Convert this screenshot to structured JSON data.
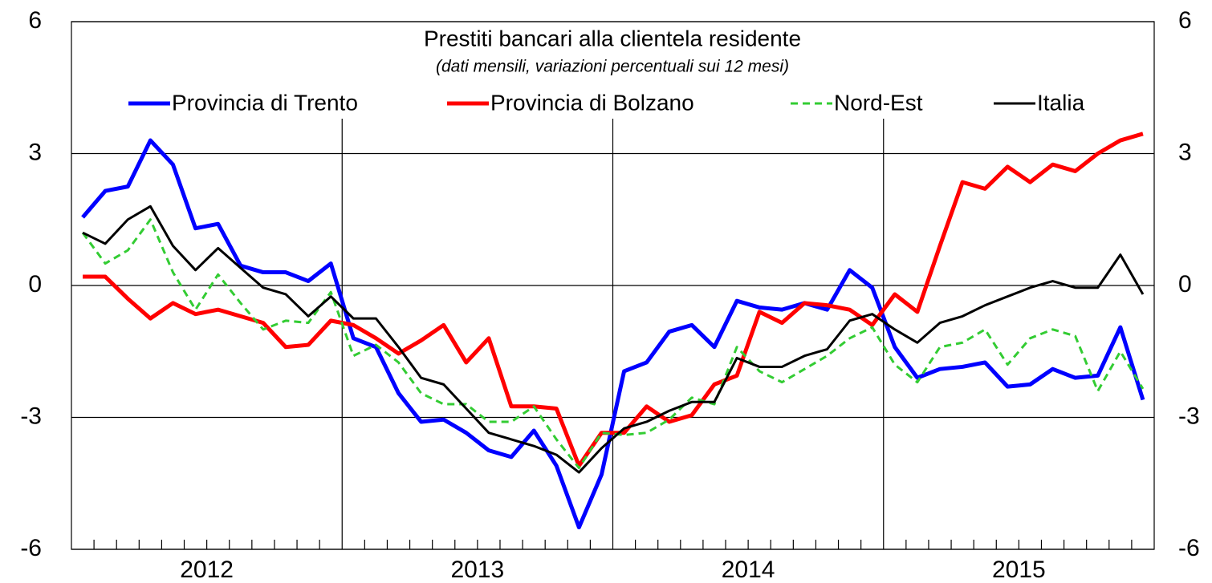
{
  "chart_data": {
    "type": "line",
    "title": "Prestiti bancari alla clientela residente",
    "subtitle": "(dati mensili, variazioni percentuali sui 12 mesi)",
    "categories": [
      null,
      null,
      null,
      null,
      null,
      null,
      null,
      null,
      null,
      null,
      null,
      null,
      null,
      null,
      null,
      null,
      null,
      null,
      null,
      null,
      null,
      null,
      null,
      null,
      null,
      null,
      null,
      null,
      null,
      null,
      null,
      null,
      null,
      null,
      null,
      null,
      null,
      null,
      null,
      null,
      null,
      null,
      null,
      null,
      null,
      null,
      null,
      null
    ],
    "x_group_labels": [
      "2012",
      "2013",
      "2014",
      "2015"
    ],
    "series": [
      {
        "name": "Provincia di Trento",
        "color": "#0000ff",
        "line_style": "solid",
        "values": [
          1.55,
          2.15,
          2.25,
          3.3,
          2.75,
          1.3,
          1.4,
          0.45,
          0.3,
          0.3,
          0.1,
          0.5,
          -1.2,
          -1.4,
          -2.45,
          -3.1,
          -3.05,
          -3.35,
          -3.75,
          -3.9,
          -3.3,
          -4.1,
          -5.5,
          -4.3,
          -1.95,
          -1.75,
          -1.05,
          -0.9,
          -1.4,
          -0.35,
          -0.5,
          -0.55,
          -0.4,
          -0.55,
          0.35,
          -0.05,
          -1.4,
          -2.1,
          -1.9,
          -1.85,
          -1.75,
          -2.3,
          -2.25,
          -1.9,
          -2.1,
          -2.05,
          -0.95,
          -2.6
        ]
      },
      {
        "name": "Provincia di Bolzano",
        "color": "#ff0000",
        "line_style": "solid",
        "values": [
          0.2,
          0.2,
          -0.3,
          -0.75,
          -0.4,
          -0.65,
          -0.55,
          -0.7,
          -0.85,
          -1.4,
          -1.35,
          -0.8,
          -0.9,
          -1.2,
          -1.55,
          -1.25,
          -0.9,
          -1.75,
          -1.2,
          -2.75,
          -2.75,
          -2.8,
          -4.1,
          -3.35,
          -3.35,
          -2.75,
          -3.1,
          -2.95,
          -2.25,
          -2.05,
          -0.6,
          -0.85,
          -0.4,
          -0.45,
          -0.55,
          -0.9,
          -0.2,
          -0.6,
          0.9,
          2.35,
          2.2,
          2.7,
          2.35,
          2.75,
          2.6,
          3.0,
          3.3,
          3.45
        ]
      },
      {
        "name": "Nord-Est",
        "color": "#33cc33",
        "line_style": "dashed",
        "values": [
          1.2,
          0.5,
          0.8,
          1.5,
          0.3,
          -0.55,
          0.25,
          -0.4,
          -1.0,
          -0.8,
          -0.85,
          -0.15,
          -1.6,
          -1.35,
          -1.75,
          -2.45,
          -2.7,
          -2.7,
          -3.1,
          -3.1,
          -2.75,
          -3.5,
          -4.15,
          -3.35,
          -3.4,
          -3.35,
          -3.05,
          -2.55,
          -2.7,
          -1.4,
          -1.95,
          -2.2,
          -1.9,
          -1.6,
          -1.2,
          -0.95,
          -1.8,
          -2.2,
          -1.4,
          -1.3,
          -1.0,
          -1.8,
          -1.2,
          -1.0,
          -1.15,
          -2.4,
          -1.5,
          -2.35
        ]
      },
      {
        "name": "Italia",
        "color": "#000000",
        "line_style": "solid",
        "values": [
          1.2,
          0.95,
          1.5,
          1.8,
          0.9,
          0.35,
          0.85,
          0.4,
          -0.05,
          -0.2,
          -0.7,
          -0.25,
          -0.75,
          -0.75,
          -1.4,
          -2.1,
          -2.25,
          -2.8,
          -3.35,
          -3.5,
          -3.65,
          -3.85,
          -4.25,
          -3.7,
          -3.25,
          -3.1,
          -2.85,
          -2.65,
          -2.65,
          -1.65,
          -1.85,
          -1.85,
          -1.6,
          -1.45,
          -0.8,
          -0.65,
          -1.0,
          -1.3,
          -0.85,
          -0.7,
          -0.45,
          -0.25,
          -0.05,
          0.1,
          -0.05,
          -0.05,
          0.7,
          -0.2
        ]
      }
    ],
    "ylim": [
      -6,
      6
    ],
    "yticks": [
      -6,
      -3,
      0,
      3,
      6
    ],
    "y2lim": [
      -6,
      6
    ],
    "y2ticks": [
      -6,
      -3,
      0,
      3,
      6
    ],
    "grid": true
  }
}
